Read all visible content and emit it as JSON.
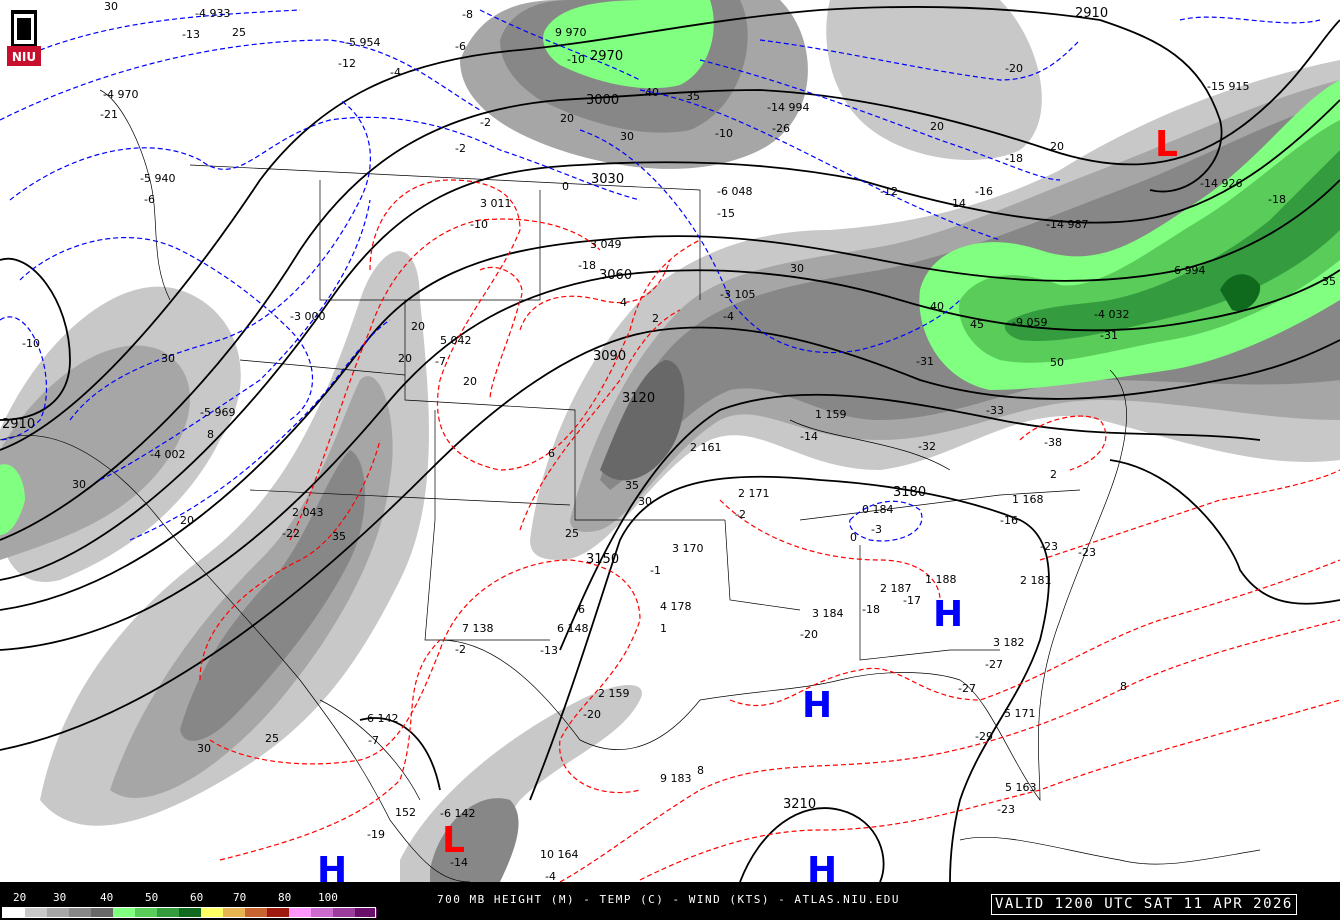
{
  "product": {
    "title": "700 MB HEIGHT (M) - TEMP (C) - WIND (KTS) - ATLAS.NIU.EDU",
    "valid": "VALID 1200 UTC SAT 11 APR 2026",
    "logo_text": "NIU"
  },
  "legend": {
    "labels": [
      "20",
      "30",
      "40",
      "50",
      "60",
      "70",
      "80",
      "100"
    ],
    "colors": [
      "#ffffff",
      "#c8c8c8",
      "#a6a6a6",
      "#878787",
      "#686868",
      "#80ff80",
      "#5acc5a",
      "#349c3e",
      "#0f6a1e",
      "#ffff66",
      "#e6b450",
      "#c86432",
      "#a0190f",
      "#ff96ff",
      "#cd6acd",
      "#9c3c9c",
      "#6a0f6a"
    ]
  },
  "colors": {
    "height_contour": "#000000",
    "temp_negative": "#0000ff",
    "temp_positive": "#ff0000",
    "low_marker": "#ff0000",
    "high_marker": "#0000ff"
  },
  "systems": [
    {
      "type": "L",
      "label": "L"
    },
    {
      "type": "L",
      "label": "L"
    },
    {
      "type": "H",
      "label": "H"
    },
    {
      "type": "H",
      "label": "H"
    },
    {
      "type": "H",
      "label": "H"
    },
    {
      "type": "H",
      "label": "H"
    }
  ],
  "height_labels": [
    "2910",
    "2910",
    "2970",
    "3000",
    "3030",
    "3060",
    "3090",
    "3120",
    "3150",
    "3180",
    "3210"
  ],
  "temp_labels": [
    "-8",
    "-6",
    "-4",
    "-2",
    "0",
    "-10",
    "-12",
    "-14",
    "-16",
    "-18",
    "-20",
    "-10",
    "0",
    "-2",
    "2",
    "4",
    "6",
    "8",
    "2",
    "6",
    "8"
  ],
  "isotach_labels": [
    "30",
    "20",
    "30",
    "35",
    "40",
    "35",
    "30",
    "25",
    "30",
    "20",
    "30",
    "25",
    "20",
    "20",
    "20",
    "30",
    "40",
    "45",
    "50",
    "35",
    "25",
    "30",
    "20",
    "20",
    "35"
  ],
  "stations": [
    "-4 933",
    "-13",
    "-5 954",
    "-12",
    "-4 970",
    "-21",
    "-5 940",
    "-6",
    "3 011",
    "-10",
    "3 049",
    "-18",
    "-3 000",
    "5 042",
    "-7",
    "-5 969",
    "8",
    "-4 002",
    "2 043",
    "-22",
    "9 970",
    "-10",
    "-14 994",
    "-26",
    "-6 048",
    "-15",
    "-3 105",
    "-4",
    "1 159",
    "-14",
    "2 161",
    "2 171",
    "-2",
    "3 170",
    "-1",
    "7 138",
    "-2",
    "6 148",
    "-13",
    "4 178",
    "1",
    "3 184",
    "-20",
    "2 187",
    "-18",
    "1 188",
    "-17",
    "0 184",
    "-3",
    "1 168",
    "-16",
    "2 181",
    "-23",
    "3 182",
    "-27",
    "2 159",
    "-20",
    "9 183",
    "5 171",
    "-29",
    "5 163",
    "-23",
    "-19",
    "152",
    "10 164",
    "-4",
    "-6 142",
    "-14",
    "6 142",
    "-7",
    "-15 915",
    "-14 926",
    "-14 987",
    "-6 994",
    "-4 032",
    "-9 059",
    "-31",
    "-18",
    "-38",
    "-31",
    "-33",
    "-32",
    "-23",
    "-27"
  ]
}
